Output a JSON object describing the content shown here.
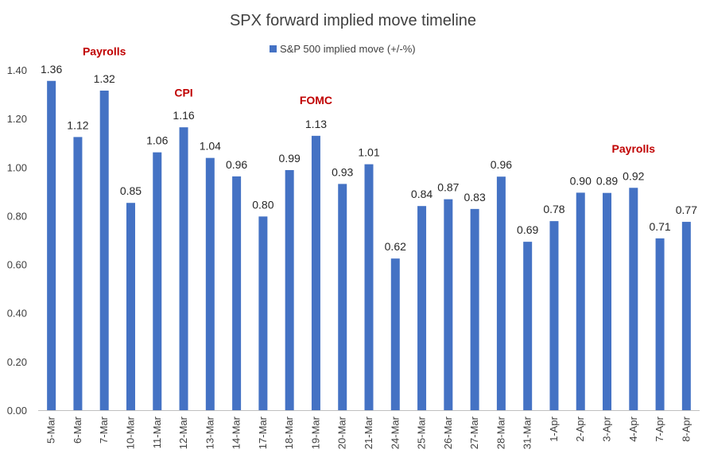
{
  "chart_data": {
    "type": "bar",
    "title": "SPX forward implied move timeline",
    "xlabel": "",
    "ylabel": "",
    "ylim": [
      0,
      1.4
    ],
    "yticks": [
      "0.00",
      "0.20",
      "0.40",
      "0.60",
      "0.80",
      "1.00",
      "1.20",
      "1.40"
    ],
    "grid": false,
    "legend": "top-center",
    "categories": [
      "5-Mar",
      "6-Mar",
      "7-Mar",
      "10-Mar",
      "11-Mar",
      "12-Mar",
      "13-Mar",
      "14-Mar",
      "17-Mar",
      "18-Mar",
      "19-Mar",
      "20-Mar",
      "21-Mar",
      "24-Mar",
      "25-Mar",
      "26-Mar",
      "27-Mar",
      "28-Mar",
      "31-Mar",
      "1-Apr",
      "2-Apr",
      "3-Apr",
      "4-Apr",
      "7-Apr",
      "8-Apr"
    ],
    "series": [
      {
        "name": "S&P 500 implied move (+/-%)",
        "color": "#4472c4",
        "values": [
          1.355,
          1.124,
          1.315,
          0.853,
          1.061,
          1.164,
          1.038,
          0.962,
          0.797,
          0.988,
          1.129,
          0.931,
          1.012,
          0.624,
          0.84,
          0.868,
          0.828,
          0.961,
          0.693,
          0.778,
          0.895,
          0.894,
          0.915,
          0.707,
          0.775
        ],
        "labels": [
          "1.36",
          "1.12",
          "1.32",
          "0.85",
          "1.06",
          "1.16",
          "1.04",
          "0.96",
          "0.80",
          "0.99",
          "1.13",
          "0.93",
          "1.01",
          "0.62",
          "0.84",
          "0.87",
          "0.83",
          "0.96",
          "0.69",
          "0.78",
          "0.90",
          "0.89",
          "0.92",
          "0.71",
          "0.77"
        ]
      }
    ],
    "annotations": [
      {
        "text": "Payrolls",
        "category": "7-Mar",
        "y": 1.46
      },
      {
        "text": "CPI",
        "category": "12-Mar",
        "y": 1.29
      },
      {
        "text": "FOMC",
        "category": "19-Mar",
        "y": 1.26
      },
      {
        "text": "Payrolls",
        "category": "4-Apr",
        "y": 1.06
      }
    ]
  }
}
